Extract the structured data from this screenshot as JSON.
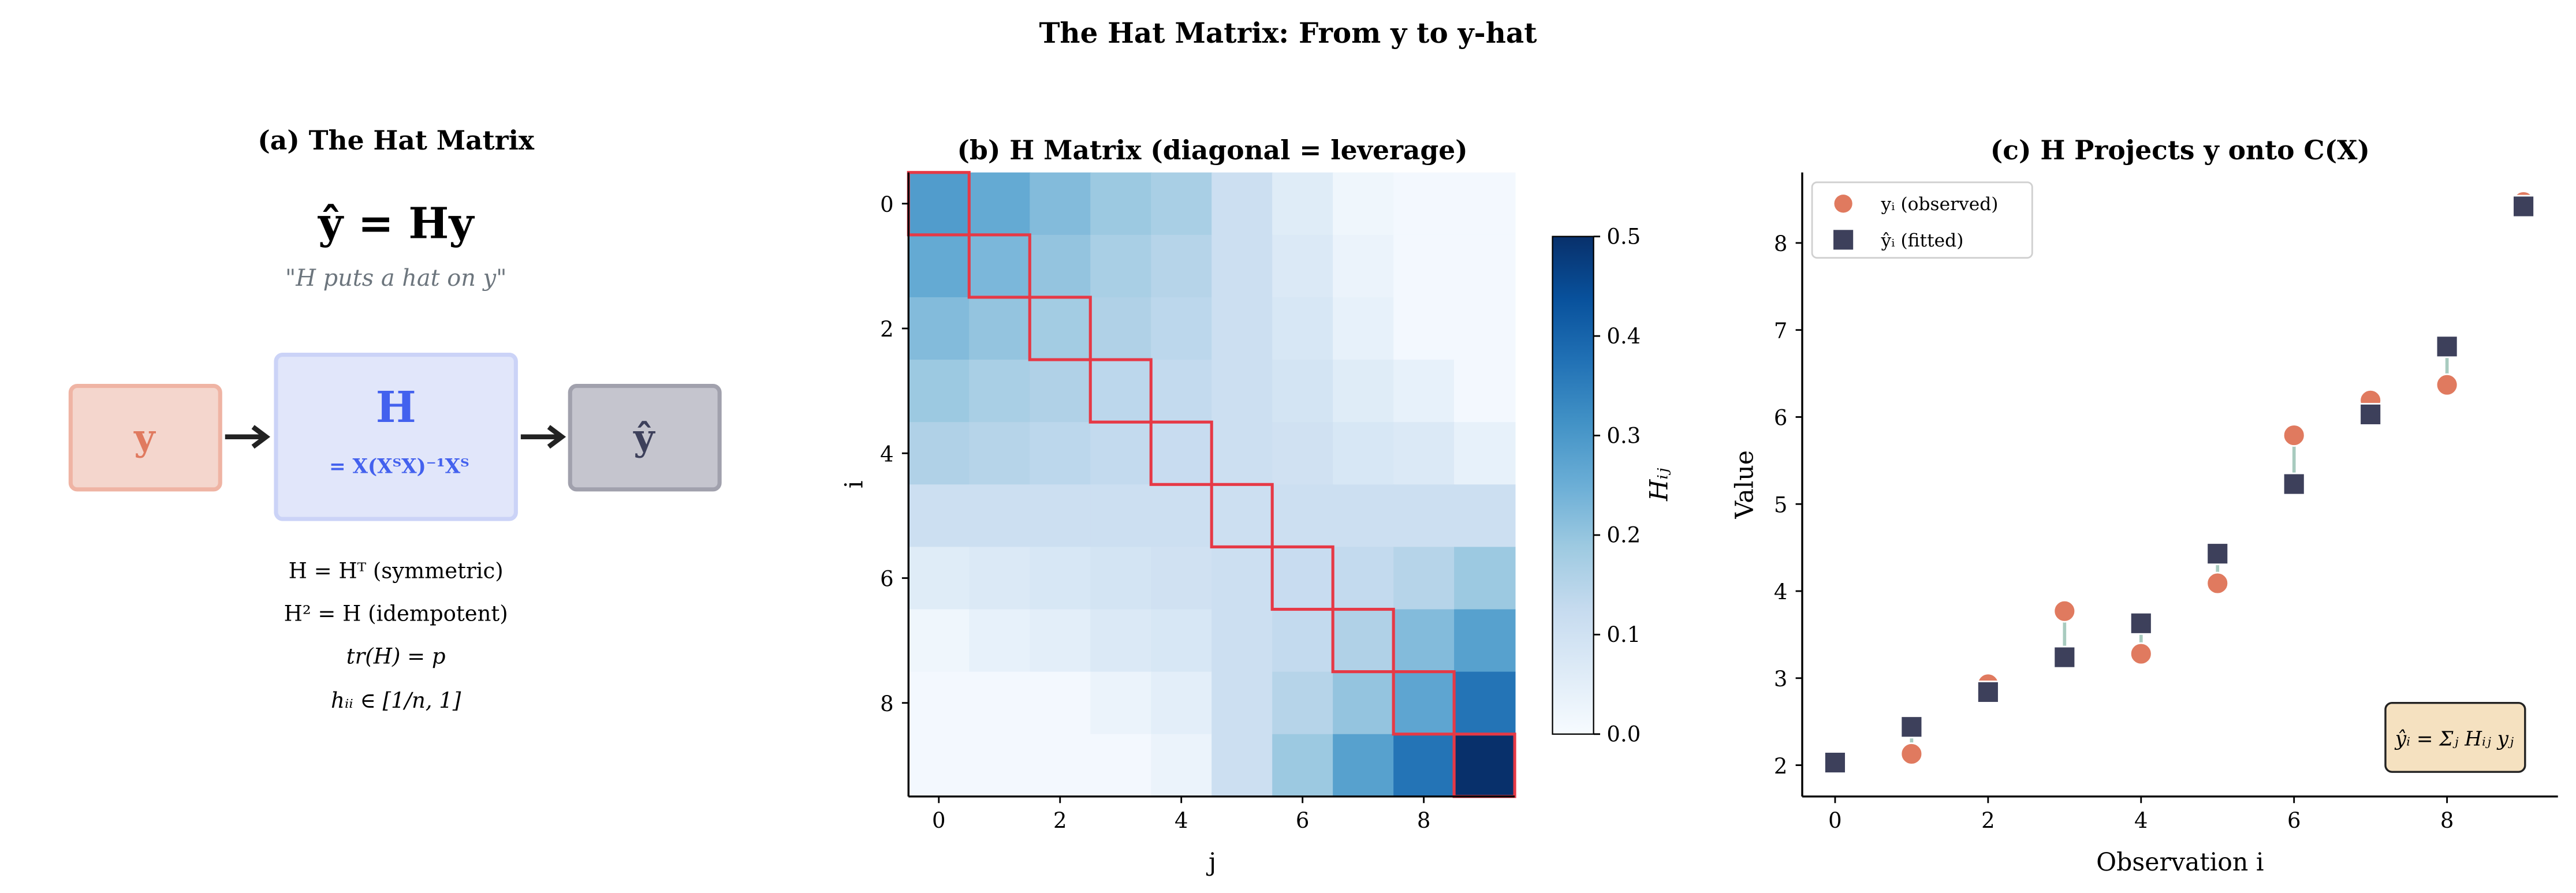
{
  "suptitle": "The Hat Matrix: From y to y-hat",
  "panel_a": {
    "title": "(a) The Hat Matrix",
    "equation": "ŷ = Hy",
    "quote": "\"H puts a hat on y\"",
    "box_y": "y",
    "box_h": "H",
    "box_h_formula": "= X(XᵀX)⁻¹Xᵀ",
    "box_yhat": "ŷ",
    "properties": [
      "H = Hᵀ (symmetric)",
      "H² = H (idempotent)",
      "tr(H) = p",
      "hᵢᵢ ∈ [1/n, 1]"
    ],
    "colors": {
      "y": "#e07a5f",
      "h": "#4361ee",
      "yhat": "#3d405b"
    }
  },
  "chart_data": [
    {
      "type": "heatmap",
      "title": "(b) H Matrix (diagonal = leverage)",
      "xlabel": "j",
      "ylabel": "i",
      "xticks": [
        "0",
        "2",
        "4",
        "6",
        "8"
      ],
      "yticks": [
        "0",
        "2",
        "4",
        "6",
        "8"
      ],
      "colorbar": {
        "label": "Hᵢⱼ",
        "range": [
          0,
          0.5
        ],
        "ticks": [
          "0.0",
          "0.1",
          "0.2",
          "0.3",
          "0.4",
          "0.5"
        ],
        "cmap": "Blues"
      },
      "highlight": "diagonal",
      "highlight_color": "#e63946",
      "matrix": [
        [
          0.29,
          0.26,
          0.22,
          0.19,
          0.17,
          0.11,
          0.06,
          0.02,
          0.01,
          0.01
        ],
        [
          0.26,
          0.23,
          0.2,
          0.17,
          0.15,
          0.11,
          0.07,
          0.03,
          0.01,
          0.01
        ],
        [
          0.22,
          0.2,
          0.18,
          0.16,
          0.14,
          0.11,
          0.08,
          0.04,
          0.01,
          0.01
        ],
        [
          0.19,
          0.17,
          0.16,
          0.14,
          0.13,
          0.11,
          0.09,
          0.06,
          0.04,
          0.01
        ],
        [
          0.16,
          0.15,
          0.14,
          0.13,
          0.12,
          0.11,
          0.1,
          0.08,
          0.07,
          0.04
        ],
        [
          0.11,
          0.11,
          0.11,
          0.11,
          0.11,
          0.11,
          0.11,
          0.11,
          0.11,
          0.11
        ],
        [
          0.06,
          0.07,
          0.08,
          0.09,
          0.1,
          0.11,
          0.12,
          0.13,
          0.15,
          0.19
        ],
        [
          0.02,
          0.04,
          0.05,
          0.07,
          0.08,
          0.11,
          0.13,
          0.16,
          0.22,
          0.28
        ],
        [
          0.01,
          0.01,
          0.01,
          0.03,
          0.05,
          0.11,
          0.15,
          0.2,
          0.27,
          0.37
        ],
        [
          0.01,
          0.01,
          0.01,
          0.01,
          0.03,
          0.11,
          0.19,
          0.28,
          0.37,
          0.5
        ]
      ]
    },
    {
      "type": "scatter",
      "title": "(c) H Projects y onto C(X)",
      "xlabel": "Observation i",
      "ylabel": "Value",
      "xlim": [
        -0.43,
        9.45
      ],
      "ylim": [
        1.64,
        8.81
      ],
      "xticks": [
        "0",
        "2",
        "4",
        "6",
        "8"
      ],
      "yticks": [
        "2",
        "3",
        "4",
        "5",
        "6",
        "7",
        "8"
      ],
      "x": [
        0,
        1,
        2,
        3,
        4,
        5,
        6,
        7,
        8,
        9
      ],
      "series": [
        {
          "name": "yᵢ (observed)",
          "marker": "circle",
          "color": "#e07a5f",
          "values": [
            2.03,
            2.13,
            2.93,
            3.77,
            3.28,
            4.09,
            5.79,
            6.19,
            6.37,
            8.47
          ]
        },
        {
          "name": "ŷᵢ (fitted)",
          "marker": "square",
          "color": "#3d405b",
          "values": [
            2.03,
            2.44,
            2.84,
            3.24,
            3.63,
            4.43,
            5.23,
            6.03,
            6.81,
            8.42
          ]
        }
      ],
      "residual_color": "#a8cbbf",
      "legend_position": "top-left",
      "annotation": "ŷᵢ = Σⱼ Hᵢⱼ yⱼ"
    }
  ]
}
